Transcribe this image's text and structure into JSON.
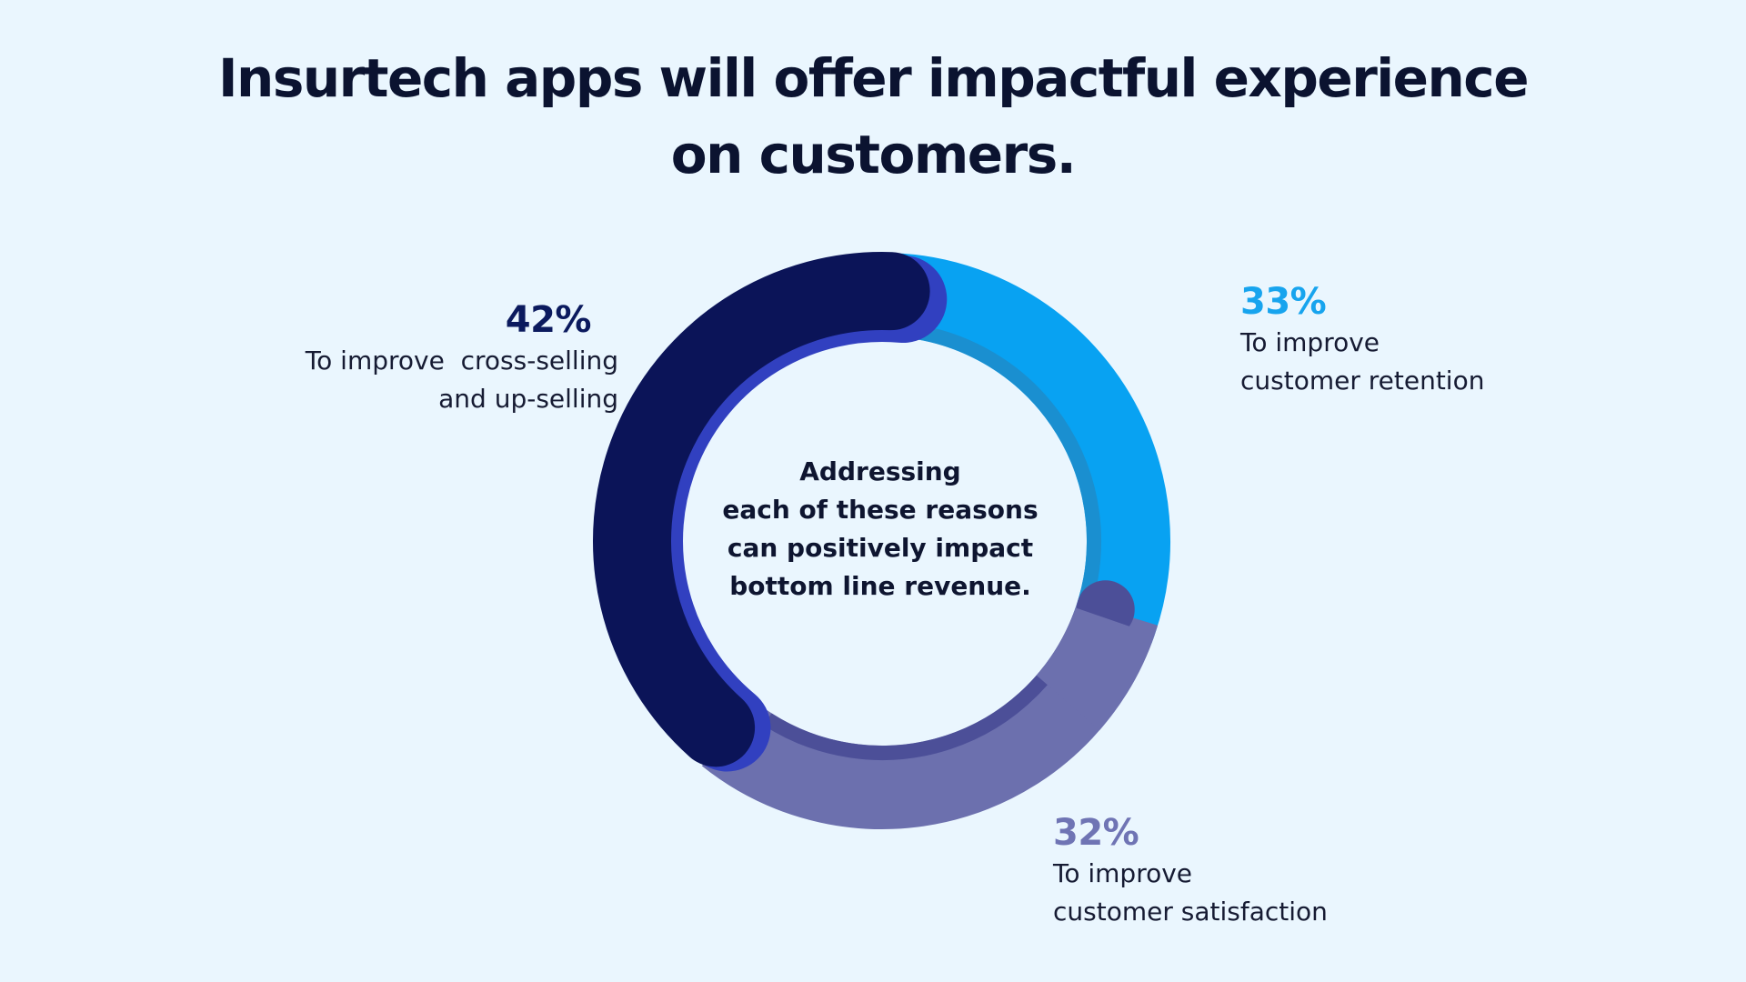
{
  "title_lines": [
    "Insurtech apps will offer impactful experience",
    "on customers."
  ],
  "center_text_lines": [
    "Addressing",
    "each of these reasons",
    "can positively impact",
    "bottom line revenue."
  ],
  "colors": {
    "background": "#eaf6fe",
    "cross_selling": "#0b1458",
    "cross_selling_edge": "#3140c0",
    "retention": "#08a2f2",
    "retention_inner": "#1a8fd0",
    "satisfaction": "#6c70ae",
    "satisfaction_inner": "#4c4f98"
  },
  "chart_data": {
    "type": "pie",
    "variant": "donut",
    "title": "Insurtech apps will offer impactful experience on customers.",
    "center_label": "Addressing each of these reasons can positively impact bottom line revenue.",
    "unit": "%",
    "series": [
      {
        "value": 42,
        "label": "42%",
        "description_lines": [
          "To improve  cross-selling",
          "and up-selling"
        ],
        "color": "#0b1458"
      },
      {
        "value": 33,
        "label": "33%",
        "description_lines": [
          "To improve",
          "customer retention"
        ],
        "color": "#08a2f2"
      },
      {
        "value": 32,
        "label": "32%",
        "description_lines": [
          "To improve",
          "customer satisfaction"
        ],
        "color": "#6c70ae"
      }
    ]
  }
}
